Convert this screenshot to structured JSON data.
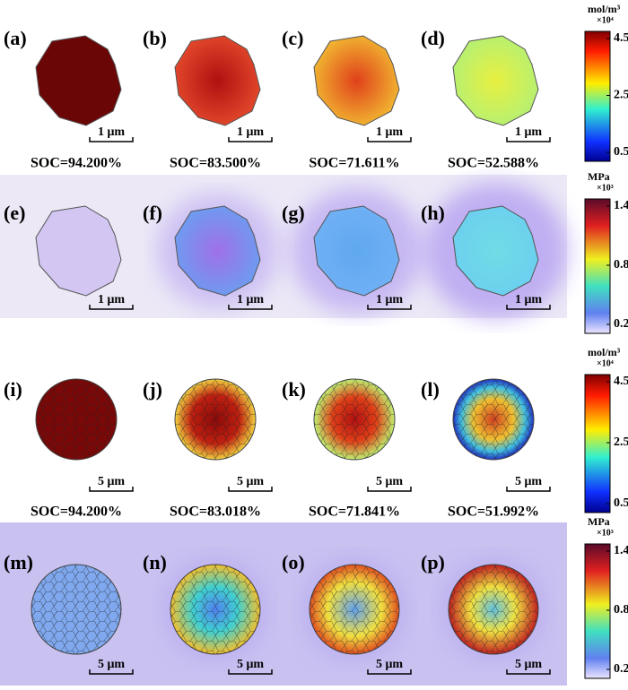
{
  "rows": [
    {
      "panels": [
        {
          "label": "(a)",
          "caption": "SOC=94.200%",
          "scale_bar": "1 μm"
        },
        {
          "label": "(b)",
          "caption": "SOC=83.500%",
          "scale_bar": "1 μm"
        },
        {
          "label": "(c)",
          "caption": "SOC=71.611%",
          "scale_bar": "1 μm"
        },
        {
          "label": "(d)",
          "caption": "SOC=52.588%",
          "scale_bar": "1 μm"
        }
      ]
    },
    {
      "panels": [
        {
          "label": "(e)",
          "scale_bar": "1 μm"
        },
        {
          "label": "(f)",
          "scale_bar": "1 μm"
        },
        {
          "label": "(g)",
          "scale_bar": "1 μm"
        },
        {
          "label": "(h)",
          "scale_bar": "1 μm"
        }
      ]
    },
    {
      "panels": [
        {
          "label": "(i)",
          "caption": "SOC=94.200%",
          "scale_bar": "5 μm"
        },
        {
          "label": "(j)",
          "caption": "SOC=83.018%",
          "scale_bar": "5 μm"
        },
        {
          "label": "(k)",
          "caption": "SOC=71.841%",
          "scale_bar": "5 μm"
        },
        {
          "label": "(l)",
          "caption": "SOC=51.992%",
          "scale_bar": "5 μm"
        }
      ]
    },
    {
      "panels": [
        {
          "label": "(m)",
          "scale_bar": "5 μm"
        },
        {
          "label": "(n)",
          "scale_bar": "5 μm"
        },
        {
          "label": "(o)",
          "scale_bar": "5 μm"
        },
        {
          "label": "(p)",
          "scale_bar": "5 μm"
        }
      ]
    }
  ],
  "colorbars": [
    {
      "unit": "mol/m³",
      "multiplier": "×10⁴",
      "ticks": [
        "4.5",
        "2.5",
        "0.5"
      ]
    },
    {
      "unit": "MPa",
      "multiplier": "×10³",
      "ticks": [
        "1.4",
        "0.8",
        "0.2"
      ]
    },
    {
      "unit": "mol/m³",
      "multiplier": "×10⁴",
      "ticks": [
        "4.5",
        "2.5",
        "0.5"
      ]
    },
    {
      "unit": "MPa",
      "multiplier": "×10³",
      "ticks": [
        "1.4",
        "0.8",
        "0.2"
      ]
    }
  ]
}
